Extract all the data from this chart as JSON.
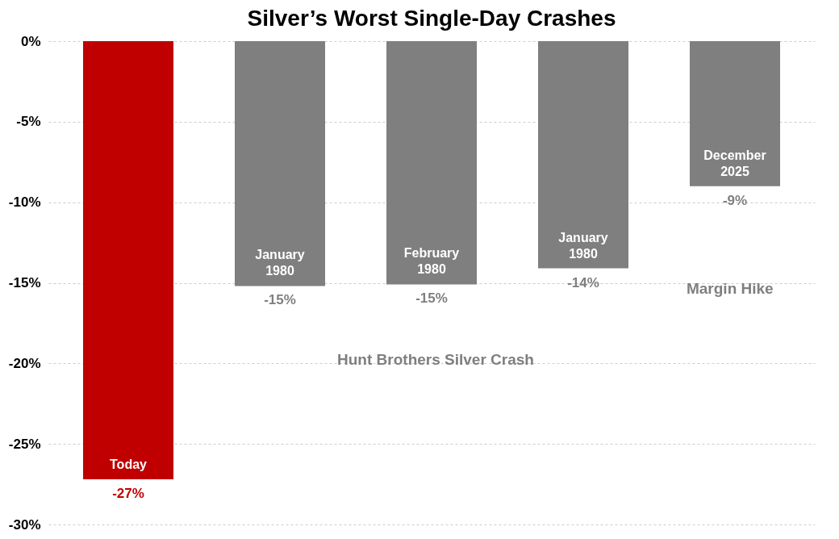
{
  "chart_data": {
    "type": "bar",
    "title": "Silver’s Worst Single-Day Crashes",
    "categories": [
      "Today",
      "January 1980",
      "February 1980",
      "January 1980",
      "December 2025"
    ],
    "values": [
      -27.2,
      -15.2,
      -15.1,
      -14.1,
      -9.0
    ],
    "colors": [
      "#c00000",
      "#7f7f7f",
      "#7f7f7f",
      "#7f7f7f",
      "#7f7f7f"
    ],
    "value_labels": [
      "-27%",
      "-15%",
      "-15%",
      "-14%",
      "-9%"
    ],
    "ylim": [
      -30,
      0
    ],
    "yticks": [
      {
        "value": 0,
        "label": "0%"
      },
      {
        "value": -5,
        "label": "-5%"
      },
      {
        "value": -10,
        "label": "-10%"
      },
      {
        "value": -15,
        "label": "-15%"
      },
      {
        "value": -20,
        "label": "-20%"
      },
      {
        "value": -25,
        "label": "-25%"
      },
      {
        "value": -30,
        "label": "-30%"
      }
    ],
    "grid": "y",
    "tick_labels": "y",
    "annotations": [
      "Hunt Brothers Silver Crash",
      "Margin Hike"
    ]
  }
}
